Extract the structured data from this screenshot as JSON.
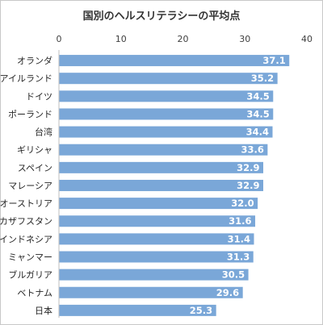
{
  "chart_data": {
    "type": "bar",
    "orientation": "horizontal",
    "title": "国別のヘルスリテラシーの平均点",
    "categories": [
      "オランダ",
      "アイルランド",
      "ドイツ",
      "ポーランド",
      "台湾",
      "ギリシャ",
      "スペイン",
      "マレーシア",
      "オーストリア",
      "カザフスタン",
      "インドネシア",
      "ミャンマー",
      "ブルガリア",
      "ベトナム",
      "日本"
    ],
    "values": [
      37.1,
      35.2,
      34.5,
      34.5,
      34.4,
      33.6,
      32.9,
      32.9,
      32.0,
      31.6,
      31.4,
      31.3,
      30.5,
      29.6,
      25.3
    ],
    "value_labels": [
      "37.1",
      "35.2",
      "34.5",
      "34.5",
      "34.4",
      "33.6",
      "32.9",
      "32.9",
      "32.0",
      "31.6",
      "31.4",
      "31.3",
      "30.5",
      "29.6",
      "25.3"
    ],
    "xlim": [
      0,
      40
    ],
    "xticks": [
      0,
      10,
      20,
      30,
      40
    ],
    "xtick_labels": [
      "0",
      "10",
      "20",
      "30",
      "40"
    ],
    "axis_position": "top",
    "grid": false,
    "legend": "none",
    "bar_color": "#7aa7d8",
    "label_color": "#ffffff"
  }
}
